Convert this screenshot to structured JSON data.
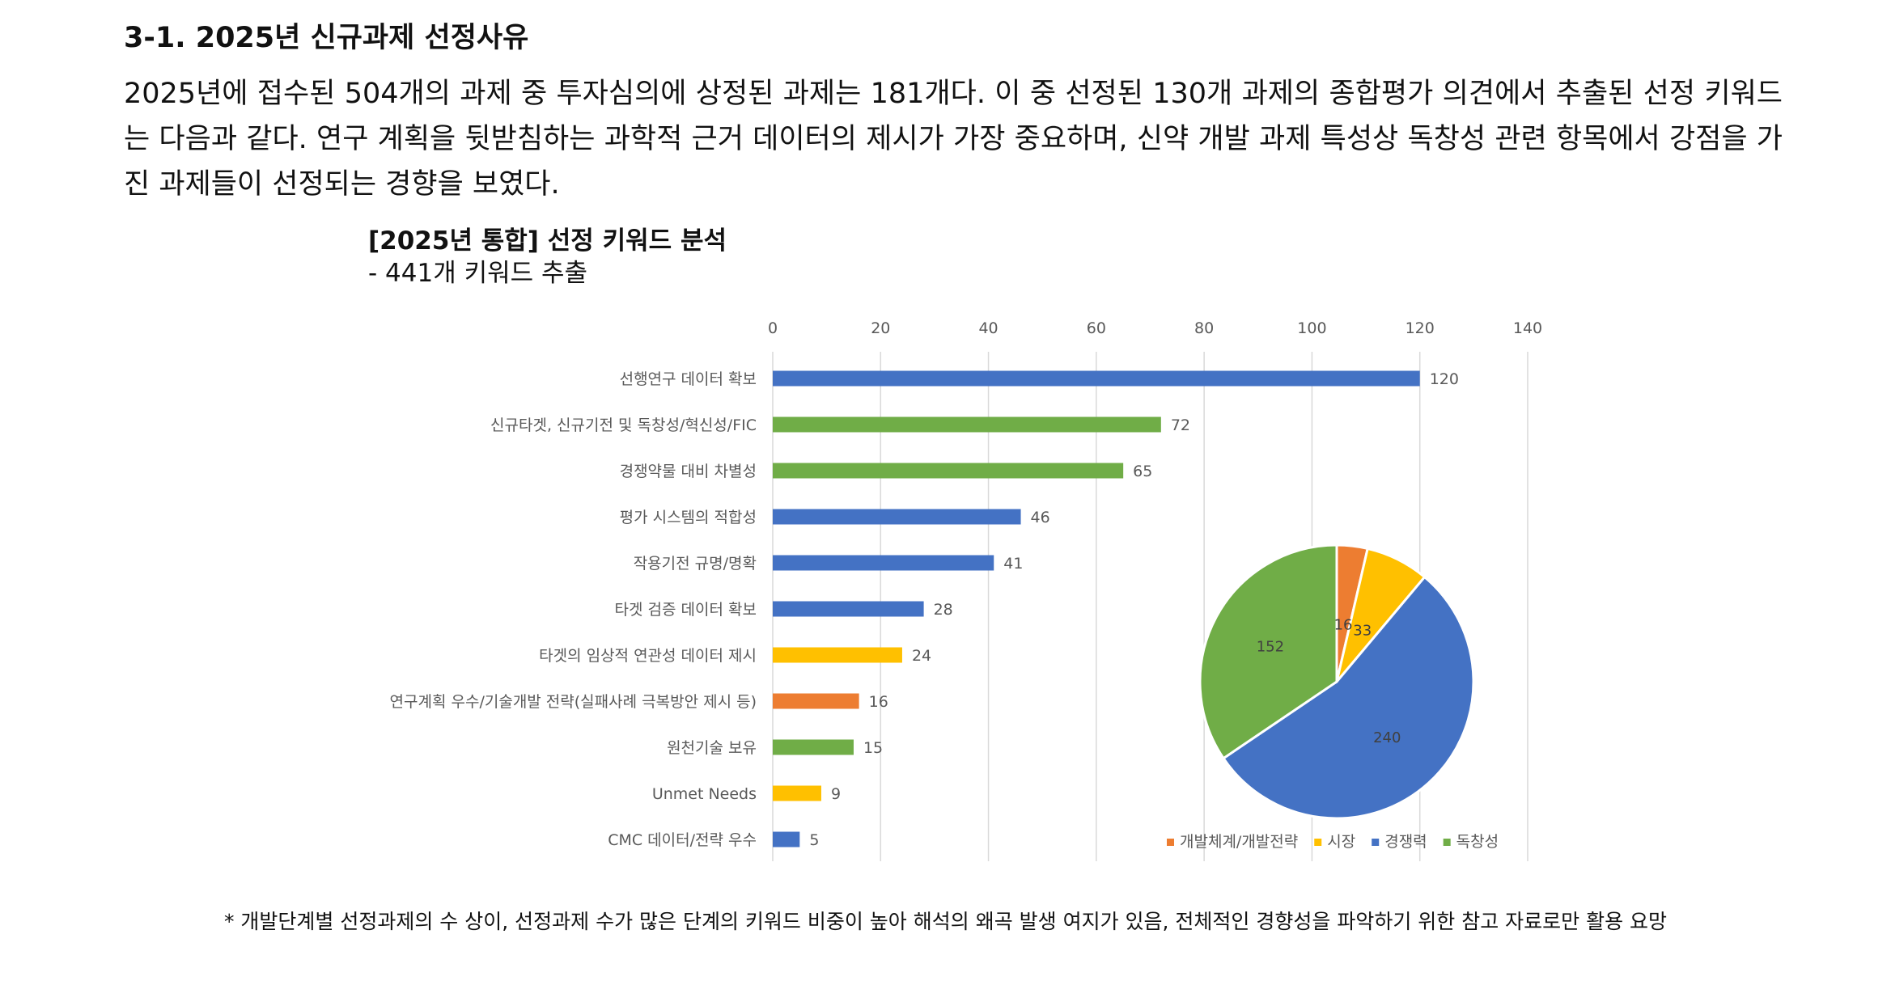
{
  "section": {
    "heading": "3-1. 2025년 신규과제 선정사유",
    "paragraph": "2025년에 접수된 504개의 과제 중 투자심의에 상정된 과제는 181개다. 이 중 선정된 130개 과제의 종합평가 의견에서 추출된 선정 키워드는 다음과 같다. 연구 계획을 뒷받침하는 과학적 근거 데이터의 제시가 가장 중요하며, 신약 개발 과제 특성상 독창성 관련 항목에서 강점을 가진 과제들이 선정되는 경향을 보였다."
  },
  "chart_header": {
    "title": "[2025년 통합] 선정 키워드 분석",
    "subtitle": "- 441개 키워드 추출"
  },
  "colors": {
    "blue": "#4472C4",
    "green": "#70AD47",
    "yellow": "#FFC000",
    "orange": "#ED7D31",
    "grid": "#D9D9D9",
    "axis_text": "#595959"
  },
  "chart_data": [
    {
      "type": "bar",
      "orientation": "horizontal",
      "categories": [
        "선행연구 데이터 확보",
        "신규타겟, 신규기전 및 독창성/혁신성/FIC",
        "경쟁약물 대비 차별성",
        "평가 시스템의 적합성",
        "작용기전 규명/명확",
        "타겟 검증 데이터 확보",
        "타겟의 임상적 연관성 데이터 제시",
        "연구계획 우수/기술개발 전략(실패사례 극복방안 제시 등)",
        "원천기술 보유",
        "Unmet Needs",
        "CMC 데이터/전략 우수"
      ],
      "values": [
        120,
        72,
        65,
        46,
        41,
        28,
        24,
        16,
        15,
        9,
        5
      ],
      "bar_colors": [
        "#4472C4",
        "#70AD47",
        "#70AD47",
        "#4472C4",
        "#4472C4",
        "#4472C4",
        "#FFC000",
        "#ED7D31",
        "#70AD47",
        "#FFC000",
        "#4472C4"
      ],
      "xlim": [
        0,
        140
      ],
      "x_ticks": [
        "0",
        "20",
        "40",
        "60",
        "80",
        "100",
        "120",
        "140"
      ],
      "x_axis_position": "top",
      "grid": "vertical",
      "data_labels": true
    },
    {
      "type": "pie",
      "labels": [
        "개발체계/개발전략",
        "시장",
        "경쟁력",
        "독창성"
      ],
      "values": [
        16,
        33,
        240,
        152
      ],
      "colors": [
        "#ED7D31",
        "#FFC000",
        "#4472C4",
        "#70AD47"
      ],
      "legend": "bottom",
      "data_labels": true
    }
  ],
  "footnote": "* 개발단계별 선정과제의 수 상이, 선정과제 수가 많은 단계의 키워드 비중이 높아 해석의 왜곡 발생 여지가 있음, 전체적인 경향성을 파악하기 위한 참고 자료로만 활용 요망"
}
